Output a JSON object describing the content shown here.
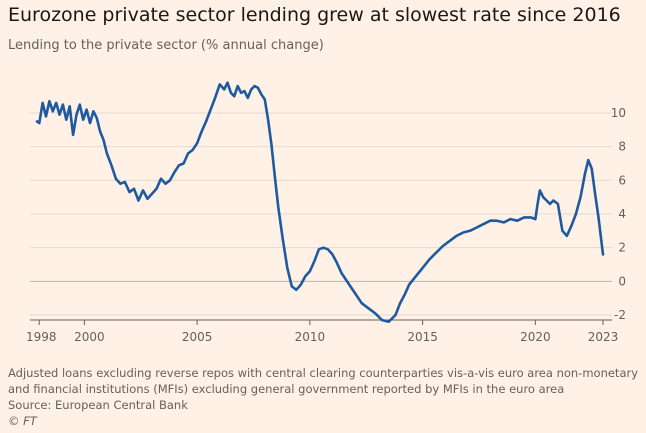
{
  "chart_data": {
    "type": "line",
    "title": "Eurozone private sector lending grew at slowest rate since 2016",
    "subtitle": "Lending to the private sector (% annual change)",
    "x_ticks": [
      "1998",
      "2000",
      "2005",
      "2010",
      "2015",
      "2020",
      "2023"
    ],
    "y_ticks": [
      "-2",
      "0",
      "2",
      "4",
      "6",
      "8",
      "10"
    ],
    "xlim": [
      1997.9,
      2023.0
    ],
    "ylim": [
      -2.4,
      11.8
    ],
    "grid": true,
    "line_color": "#1e5aa0",
    "series": [
      {
        "name": "",
        "x": [
          1997.9,
          1998.0,
          1998.15,
          1998.3,
          1998.45,
          1998.6,
          1998.75,
          1998.9,
          1999.05,
          1999.2,
          1999.35,
          1999.5,
          1999.65,
          1999.8,
          1999.95,
          2000.1,
          2000.25,
          2000.4,
          2000.55,
          2000.7,
          2000.85,
          2001.0,
          2001.2,
          2001.4,
          2001.6,
          2001.8,
          2002.0,
          2002.2,
          2002.4,
          2002.6,
          2002.8,
          2003.0,
          2003.2,
          2003.4,
          2003.6,
          2003.8,
          2004.0,
          2004.2,
          2004.4,
          2004.6,
          2004.8,
          2005.0,
          2005.2,
          2005.4,
          2005.6,
          2005.8,
          2006.0,
          2006.2,
          2006.35,
          2006.5,
          2006.65,
          2006.8,
          2006.95,
          2007.1,
          2007.25,
          2007.4,
          2007.55,
          2007.7,
          2007.85,
          2008.0,
          2008.15,
          2008.3,
          2008.45,
          2008.6,
          2008.8,
          2009.0,
          2009.2,
          2009.4,
          2009.6,
          2009.8,
          2010.0,
          2010.2,
          2010.4,
          2010.6,
          2010.8,
          2011.0,
          2011.2,
          2011.4,
          2011.6,
          2011.8,
          2012.0,
          2012.3,
          2012.6,
          2012.9,
          2013.2,
          2013.5,
          2013.8,
          2014.0,
          2014.2,
          2014.4,
          2014.7,
          2015.0,
          2015.3,
          2015.6,
          2015.9,
          2016.2,
          2016.5,
          2016.8,
          2017.1,
          2017.4,
          2017.7,
          2018.0,
          2018.3,
          2018.6,
          2018.9,
          2019.2,
          2019.5,
          2019.8,
          2020.0,
          2020.1,
          2020.2,
          2020.35,
          2020.5,
          2020.65,
          2020.8,
          2021.0,
          2021.2,
          2021.4,
          2021.6,
          2021.8,
          2022.0,
          2022.2,
          2022.35,
          2022.5,
          2022.65,
          2022.8,
          2023.0
        ],
        "y": [
          9.5,
          9.4,
          10.6,
          9.8,
          10.7,
          10.1,
          10.6,
          9.9,
          10.5,
          9.6,
          10.4,
          8.7,
          9.9,
          10.5,
          9.6,
          10.2,
          9.4,
          10.1,
          9.7,
          8.9,
          8.4,
          7.6,
          6.9,
          6.1,
          5.8,
          5.9,
          5.3,
          5.5,
          4.8,
          5.4,
          4.9,
          5.2,
          5.5,
          6.1,
          5.8,
          6.0,
          6.5,
          6.9,
          7.0,
          7.6,
          7.8,
          8.2,
          8.9,
          9.5,
          10.2,
          10.9,
          11.7,
          11.4,
          11.8,
          11.2,
          11.0,
          11.6,
          11.2,
          11.3,
          10.9,
          11.4,
          11.6,
          11.5,
          11.1,
          10.8,
          9.6,
          8.1,
          6.2,
          4.4,
          2.5,
          0.8,
          -0.3,
          -0.5,
          -0.2,
          0.3,
          0.6,
          1.2,
          1.9,
          2.0,
          1.9,
          1.6,
          1.1,
          0.5,
          0.1,
          -0.3,
          -0.7,
          -1.3,
          -1.6,
          -1.9,
          -2.3,
          -2.4,
          -2.0,
          -1.3,
          -0.8,
          -0.2,
          0.3,
          0.8,
          1.3,
          1.7,
          2.1,
          2.4,
          2.7,
          2.9,
          3.0,
          3.2,
          3.4,
          3.6,
          3.6,
          3.5,
          3.7,
          3.6,
          3.8,
          3.8,
          3.7,
          4.6,
          5.4,
          5.0,
          4.8,
          4.6,
          4.8,
          4.6,
          3.0,
          2.7,
          3.3,
          4.0,
          5.0,
          6.4,
          7.2,
          6.7,
          5.2,
          3.8,
          1.6
        ]
      }
    ]
  },
  "footnote": {
    "line1": "Adjusted loans excluding reverse repos with central clearing counterparties vis-a-vis euro area non-monetary",
    "line2": "and financial institutions (MFIs) excluding general government reported by MFIs in the euro area",
    "source": "Source: European Central Bank"
  },
  "credit": "© FT"
}
